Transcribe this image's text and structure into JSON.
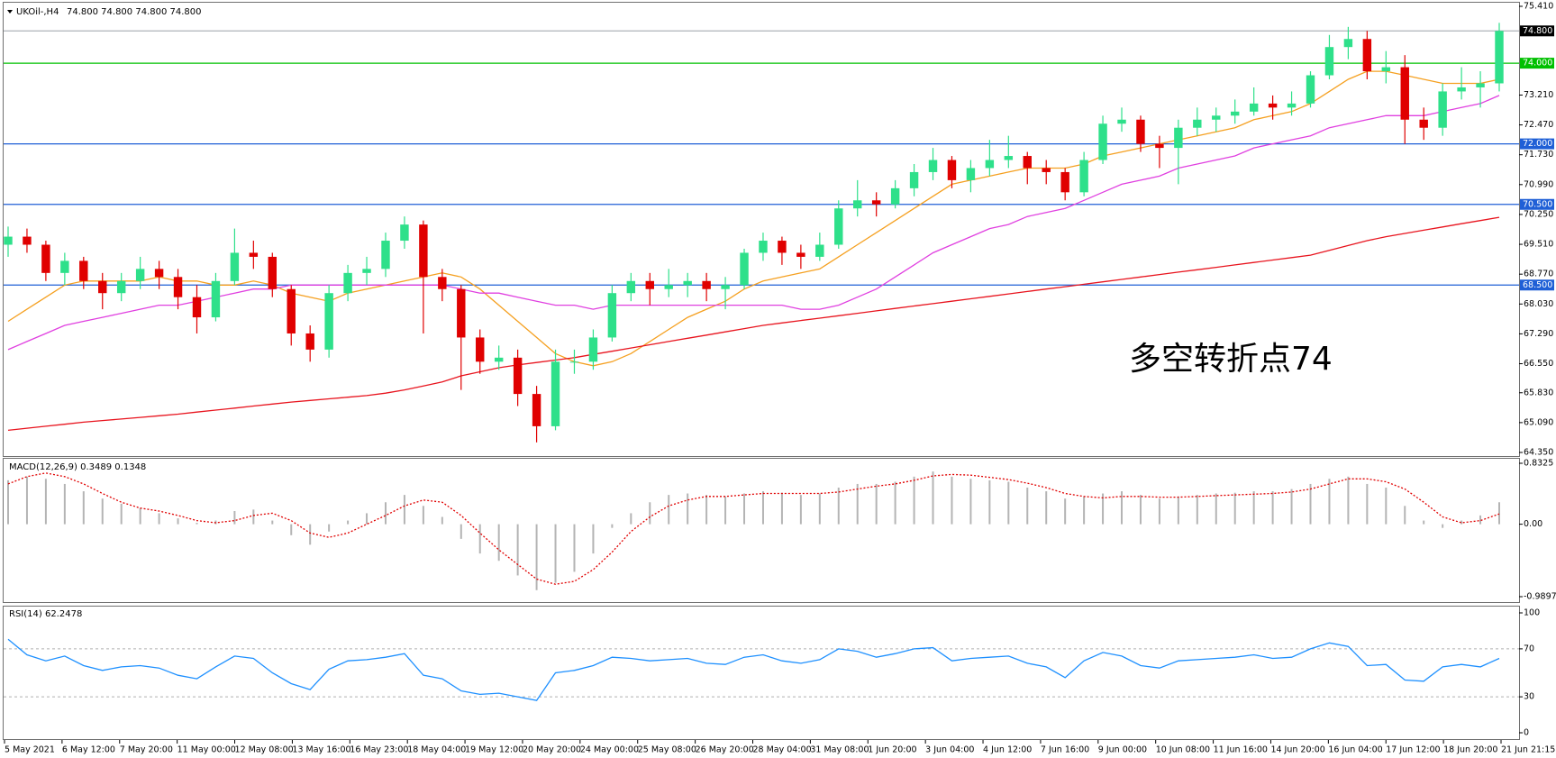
{
  "chart_data": [
    {
      "type": "candlestick",
      "title": "UKOil-,H4",
      "subtitle": "74.800 74.800 74.800 74.800",
      "annotation": "多空转折点74",
      "ylim": [
        64.35,
        75.41
      ],
      "yticks": [
        {
          "value": 75.41,
          "label": "75.410"
        },
        {
          "value": 73.21,
          "label": "73.210"
        },
        {
          "value": 72.47,
          "label": "72.470"
        },
        {
          "value": 71.73,
          "label": "71.730"
        },
        {
          "value": 70.99,
          "label": "70.990"
        },
        {
          "value": 70.25,
          "label": "70.250"
        },
        {
          "value": 69.51,
          "label": "69.510"
        },
        {
          "value": 68.77,
          "label": "68.770"
        },
        {
          "value": 68.03,
          "label": "68.030"
        },
        {
          "value": 67.29,
          "label": "67.290"
        },
        {
          "value": 66.55,
          "label": "66.550"
        },
        {
          "value": 65.83,
          "label": "65.830"
        },
        {
          "value": 65.09,
          "label": "65.090"
        },
        {
          "value": 64.35,
          "label": "64.350"
        }
      ],
      "levels": [
        {
          "value": 74,
          "label": "74.000",
          "color": "#00c000"
        },
        {
          "value": 72,
          "label": "72.000",
          "color": "#1f5fd6"
        },
        {
          "value": 70.5,
          "label": "70.500",
          "color": "#1f5fd6"
        },
        {
          "value": 68.5,
          "label": "68.500",
          "color": "#1f5fd6"
        }
      ],
      "price_line": {
        "value": 74.8,
        "label": "74.800",
        "color": "#9aa0a8"
      },
      "up_color": "#2ee08a",
      "down_color": "#e00000",
      "candles": [
        [
          69.5,
          69.95,
          69.2,
          69.7
        ],
        [
          69.7,
          69.9,
          69.3,
          69.5
        ],
        [
          69.5,
          69.6,
          68.6,
          68.8
        ],
        [
          68.8,
          69.3,
          68.5,
          69.1
        ],
        [
          69.1,
          69.2,
          68.4,
          68.6
        ],
        [
          68.6,
          68.8,
          67.9,
          68.3
        ],
        [
          68.3,
          68.8,
          68.1,
          68.6
        ],
        [
          68.6,
          69.2,
          68.4,
          68.9
        ],
        [
          68.9,
          69.1,
          68.4,
          68.7
        ],
        [
          68.7,
          68.9,
          67.9,
          68.2
        ],
        [
          68.2,
          68.5,
          67.3,
          67.7
        ],
        [
          67.7,
          68.8,
          67.6,
          68.6
        ],
        [
          68.6,
          69.9,
          68.5,
          69.3
        ],
        [
          69.3,
          69.6,
          68.9,
          69.2
        ],
        [
          69.2,
          69.3,
          68.2,
          68.4
        ],
        [
          68.4,
          68.5,
          67.0,
          67.3
        ],
        [
          67.3,
          67.5,
          66.6,
          66.9
        ],
        [
          66.9,
          68.5,
          66.7,
          68.3
        ],
        [
          68.3,
          69.0,
          68.1,
          68.8
        ],
        [
          68.8,
          69.2,
          68.5,
          68.9
        ],
        [
          68.9,
          69.8,
          68.7,
          69.6
        ],
        [
          69.6,
          70.2,
          69.4,
          70.0
        ],
        [
          70.0,
          70.1,
          67.3,
          68.7
        ],
        [
          68.7,
          68.9,
          68.1,
          68.4
        ],
        [
          68.4,
          68.5,
          65.9,
          67.2
        ],
        [
          67.2,
          67.4,
          66.3,
          66.6
        ],
        [
          66.6,
          67.0,
          66.4,
          66.7
        ],
        [
          66.7,
          66.9,
          65.5,
          65.8
        ],
        [
          65.8,
          66.0,
          64.6,
          65.0
        ],
        [
          65.0,
          66.9,
          64.9,
          66.6
        ],
        [
          66.6,
          66.9,
          66.3,
          66.6
        ],
        [
          66.6,
          67.4,
          66.4,
          67.2
        ],
        [
          67.2,
          68.5,
          67.1,
          68.3
        ],
        [
          68.3,
          68.8,
          68.1,
          68.6
        ],
        [
          68.6,
          68.8,
          68.0,
          68.4
        ],
        [
          68.4,
          68.9,
          68.2,
          68.5
        ],
        [
          68.5,
          68.8,
          68.2,
          68.6
        ],
        [
          68.6,
          68.8,
          68.1,
          68.4
        ],
        [
          68.4,
          68.7,
          67.9,
          68.5
        ],
        [
          68.5,
          69.4,
          68.4,
          69.3
        ],
        [
          69.3,
          69.8,
          69.1,
          69.6
        ],
        [
          69.6,
          69.7,
          69.0,
          69.3
        ],
        [
          69.3,
          69.5,
          68.9,
          69.2
        ],
        [
          69.2,
          69.8,
          69.1,
          69.5
        ],
        [
          69.5,
          70.6,
          69.4,
          70.4
        ],
        [
          70.4,
          71.1,
          70.2,
          70.6
        ],
        [
          70.6,
          70.8,
          70.2,
          70.5
        ],
        [
          70.5,
          71.1,
          70.4,
          70.9
        ],
        [
          70.9,
          71.5,
          70.7,
          71.3
        ],
        [
          71.3,
          71.9,
          71.1,
          71.6
        ],
        [
          71.6,
          71.7,
          70.9,
          71.1
        ],
        [
          71.1,
          71.6,
          70.8,
          71.4
        ],
        [
          71.4,
          72.1,
          71.2,
          71.6
        ],
        [
          71.6,
          72.2,
          71.4,
          71.7
        ],
        [
          71.7,
          71.8,
          71.0,
          71.4
        ],
        [
          71.4,
          71.6,
          71.0,
          71.3
        ],
        [
          71.3,
          71.4,
          70.6,
          70.8
        ],
        [
          70.8,
          71.8,
          70.7,
          71.6
        ],
        [
          71.6,
          72.7,
          71.5,
          72.5
        ],
        [
          72.5,
          72.9,
          72.3,
          72.6
        ],
        [
          72.6,
          72.7,
          71.8,
          72.0
        ],
        [
          72.0,
          72.2,
          71.4,
          71.9
        ],
        [
          71.9,
          72.6,
          71.0,
          72.4
        ],
        [
          72.4,
          72.9,
          72.2,
          72.6
        ],
        [
          72.6,
          72.9,
          72.3,
          72.7
        ],
        [
          72.7,
          73.1,
          72.5,
          72.8
        ],
        [
          72.8,
          73.4,
          72.7,
          73.0
        ],
        [
          73.0,
          73.2,
          72.6,
          72.9
        ],
        [
          72.9,
          73.3,
          72.7,
          73.0
        ],
        [
          73.0,
          73.8,
          72.9,
          73.7
        ],
        [
          73.7,
          74.7,
          73.6,
          74.4
        ],
        [
          74.4,
          74.9,
          74.1,
          74.6
        ],
        [
          74.6,
          74.8,
          73.6,
          73.8
        ],
        [
          73.8,
          74.3,
          73.5,
          73.9
        ],
        [
          73.9,
          74.2,
          72.0,
          72.6
        ],
        [
          72.6,
          72.9,
          72.1,
          72.4
        ],
        [
          72.4,
          73.5,
          72.2,
          73.3
        ],
        [
          73.3,
          73.9,
          73.1,
          73.4
        ],
        [
          73.4,
          73.8,
          72.9,
          73.5
        ],
        [
          73.5,
          75.0,
          73.3,
          74.8
        ]
      ],
      "series": [
        {
          "color": "#f5a020",
          "values": [
            67.6,
            67.9,
            68.2,
            68.5,
            68.6,
            68.6,
            68.6,
            68.6,
            68.7,
            68.6,
            68.6,
            68.5,
            68.5,
            68.6,
            68.5,
            68.3,
            68.2,
            68.1,
            68.3,
            68.4,
            68.5,
            68.6,
            68.7,
            68.8,
            68.7,
            68.4,
            68.0,
            67.6,
            67.2,
            66.8,
            66.6,
            66.5,
            66.6,
            66.8,
            67.1,
            67.4,
            67.7,
            67.9,
            68.1,
            68.4,
            68.6,
            68.7,
            68.8,
            68.9,
            69.2,
            69.5,
            69.8,
            70.1,
            70.4,
            70.7,
            71.0,
            71.1,
            71.2,
            71.3,
            71.4,
            71.4,
            71.4,
            71.5,
            71.7,
            71.8,
            71.9,
            72.0,
            72.1,
            72.2,
            72.3,
            72.4,
            72.6,
            72.7,
            72.8,
            73.0,
            73.3,
            73.6,
            73.8,
            73.8,
            73.7,
            73.6,
            73.5,
            73.5,
            73.5,
            73.6
          ]
        },
        {
          "color": "#e040e0",
          "values": [
            66.9,
            67.1,
            67.3,
            67.5,
            67.6,
            67.7,
            67.8,
            67.9,
            68.0,
            68.0,
            68.1,
            68.2,
            68.3,
            68.4,
            68.4,
            68.5,
            68.5,
            68.5,
            68.5,
            68.5,
            68.5,
            68.5,
            68.5,
            68.5,
            68.4,
            68.3,
            68.3,
            68.2,
            68.1,
            68.0,
            68.0,
            67.9,
            68.0,
            68.0,
            68.0,
            68.0,
            68.0,
            68.0,
            68.0,
            68.0,
            68.0,
            68.0,
            67.9,
            67.9,
            68.0,
            68.2,
            68.4,
            68.7,
            69.0,
            69.3,
            69.5,
            69.7,
            69.9,
            70.0,
            70.2,
            70.3,
            70.4,
            70.6,
            70.8,
            71.0,
            71.1,
            71.2,
            71.4,
            71.5,
            71.6,
            71.7,
            71.9,
            72.0,
            72.1,
            72.2,
            72.4,
            72.5,
            72.6,
            72.7,
            72.7,
            72.7,
            72.8,
            72.9,
            73.0,
            73.2
          ]
        },
        {
          "color": "#e8141e",
          "values": [
            64.9,
            64.95,
            65.0,
            65.05,
            65.1,
            65.14,
            65.18,
            65.22,
            65.26,
            65.3,
            65.35,
            65.4,
            65.45,
            65.5,
            65.55,
            65.6,
            65.64,
            65.68,
            65.72,
            65.76,
            65.82,
            65.9,
            66.0,
            66.1,
            66.25,
            66.35,
            66.45,
            66.52,
            66.58,
            66.64,
            66.7,
            66.78,
            66.86,
            66.94,
            67.02,
            67.1,
            67.18,
            67.26,
            67.34,
            67.42,
            67.5,
            67.56,
            67.62,
            67.68,
            67.74,
            67.8,
            67.86,
            67.92,
            67.98,
            68.04,
            68.1,
            68.16,
            68.22,
            68.28,
            68.34,
            68.4,
            68.46,
            68.52,
            68.58,
            68.64,
            68.7,
            68.76,
            68.82,
            68.88,
            68.94,
            69.0,
            69.06,
            69.12,
            69.18,
            69.24,
            69.36,
            69.48,
            69.6,
            69.7,
            69.78,
            69.86,
            69.94,
            70.02,
            70.1,
            70.18
          ]
        }
      ]
    },
    {
      "type": "macd",
      "title": "MACD(12,26,9) 0.3489 0.1348",
      "ylim": [
        -0.9897,
        0.8325
      ],
      "yticks": [
        0.8325,
        {
          "value": 0,
          "label": "0.00"
        },
        -0.9897
      ],
      "series": [
        {
          "style": "histogram",
          "color": "#b4b4b4",
          "values": [
            0.6,
            0.65,
            0.62,
            0.55,
            0.45,
            0.35,
            0.28,
            0.22,
            0.15,
            0.08,
            0.02,
            0.05,
            0.18,
            0.2,
            0.05,
            -0.15,
            -0.28,
            -0.1,
            0.05,
            0.15,
            0.3,
            0.4,
            0.25,
            0.1,
            -0.2,
            -0.4,
            -0.5,
            -0.7,
            -0.9,
            -0.8,
            -0.65,
            -0.4,
            -0.05,
            0.15,
            0.3,
            0.4,
            0.42,
            0.4,
            0.38,
            0.42,
            0.45,
            0.43,
            0.4,
            0.42,
            0.5,
            0.55,
            0.55,
            0.58,
            0.65,
            0.72,
            0.65,
            0.62,
            0.6,
            0.58,
            0.5,
            0.45,
            0.35,
            0.38,
            0.42,
            0.45,
            0.4,
            0.35,
            0.38,
            0.4,
            0.42,
            0.43,
            0.45,
            0.45,
            0.48,
            0.55,
            0.62,
            0.65,
            0.55,
            0.5,
            0.25,
            0.05,
            -0.05,
            0.05,
            0.12,
            0.3
          ]
        },
        {
          "style": "dotted",
          "color": "#e00000",
          "values": [
            0.55,
            0.65,
            0.7,
            0.65,
            0.55,
            0.42,
            0.3,
            0.22,
            0.18,
            0.12,
            0.05,
            0.02,
            0.05,
            0.12,
            0.15,
            0.05,
            -0.12,
            -0.18,
            -0.12,
            0.0,
            0.12,
            0.25,
            0.33,
            0.3,
            0.12,
            -0.12,
            -0.35,
            -0.55,
            -0.75,
            -0.82,
            -0.78,
            -0.62,
            -0.38,
            -0.1,
            0.1,
            0.25,
            0.33,
            0.38,
            0.38,
            0.4,
            0.42,
            0.42,
            0.42,
            0.42,
            0.44,
            0.48,
            0.52,
            0.55,
            0.6,
            0.66,
            0.68,
            0.67,
            0.64,
            0.61,
            0.56,
            0.5,
            0.42,
            0.38,
            0.36,
            0.38,
            0.38,
            0.37,
            0.37,
            0.38,
            0.39,
            0.4,
            0.41,
            0.42,
            0.44,
            0.48,
            0.55,
            0.62,
            0.62,
            0.58,
            0.48,
            0.3,
            0.1,
            0.02,
            0.05,
            0.14
          ]
        }
      ]
    },
    {
      "type": "line",
      "title": "RSI(14) 62.2478",
      "ylim": [
        0,
        100
      ],
      "yticks": [
        100,
        70,
        30,
        0
      ],
      "levels": [
        70,
        30
      ],
      "series": [
        {
          "color": "#1e90ff",
          "values": [
            78,
            65,
            60,
            64,
            56,
            52,
            55,
            56,
            54,
            48,
            45,
            55,
            64,
            62,
            50,
            41,
            36,
            53,
            60,
            61,
            63,
            66,
            48,
            45,
            35,
            32,
            33,
            30,
            27,
            50,
            52,
            56,
            63,
            62,
            60,
            61,
            62,
            58,
            57,
            63,
            65,
            60,
            58,
            61,
            70,
            68,
            63,
            66,
            70,
            71,
            60,
            62,
            63,
            64,
            58,
            55,
            46,
            60,
            67,
            64,
            56,
            54,
            60,
            61,
            62,
            63,
            65,
            62,
            63,
            70,
            75,
            72,
            56,
            57,
            44,
            43,
            55,
            57,
            55,
            62
          ]
        }
      ],
      "xticks": [
        "5 May 2021",
        "6 May 12:00",
        "7 May 20:00",
        "11 May 00:00",
        "12 May 08:00",
        "13 May 16:00",
        "16 May 23:00",
        "18 May 04:00",
        "19 May 12:00",
        "20 May 20:00",
        "24 May 00:00",
        "25 May 08:00",
        "26 May 20:00",
        "28 May 04:00",
        "31 May 08:00",
        "1 Jun 20:00",
        "3 Jun 04:00",
        "4 Jun 12:00",
        "7 Jun 16:00",
        "9 Jun 00:00",
        "10 Jun 08:00",
        "11 Jun 16:00",
        "14 Jun 20:00",
        "16 Jun 04:00",
        "17 Jun 12:00",
        "18 Jun 20:00",
        "21 Jun 21:15"
      ]
    }
  ]
}
